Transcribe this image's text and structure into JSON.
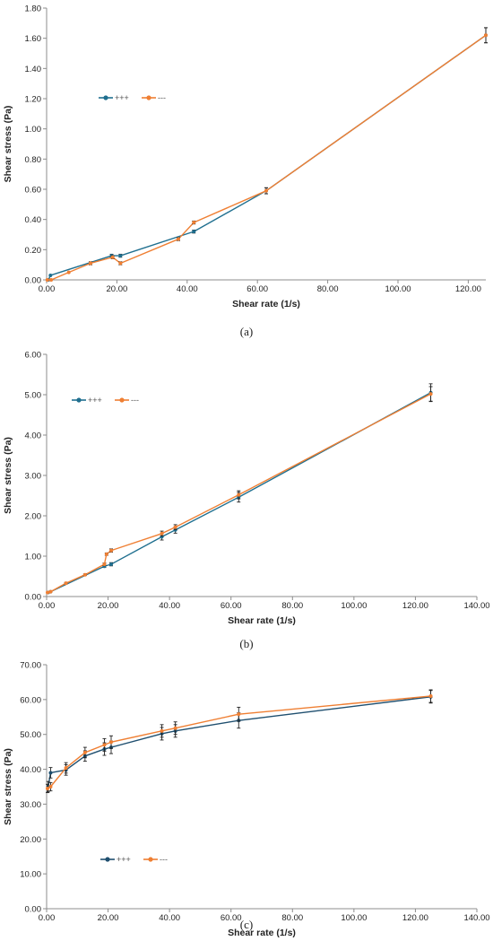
{
  "colors": {
    "series1": "#1f6f8f",
    "series2": "#ef7f33",
    "series1_panel_c": "#1f4f6f",
    "axis": "#8c8c8c",
    "errorbar": "#222222"
  },
  "chart_data": [
    {
      "type": "line",
      "caption": "(a)",
      "xlabel": "Shear rate (1/s)",
      "ylabel": "Shear stress (Pa)",
      "xlim": [
        0,
        125
      ],
      "ylim": [
        0,
        1.8
      ],
      "x_ticks": [
        "0.00",
        "20.00",
        "40.00",
        "60.00",
        "80.00",
        "100.00",
        "120.00"
      ],
      "y_ticks": [
        "0.00",
        "0.20",
        "0.40",
        "0.60",
        "0.80",
        "1.00",
        "1.20",
        "1.40",
        "1.60",
        "1.80"
      ],
      "grid": false,
      "legend_position": "upper-left",
      "series": [
        {
          "name": "+++",
          "color": "#1f6f8f",
          "points": [
            [
              0.5,
              0.0
            ],
            [
              1.1,
              0.03
            ],
            [
              18.5,
              0.16
            ],
            [
              21.0,
              0.16
            ],
            [
              41.9,
              0.32
            ],
            [
              62.5,
              0.59
            ],
            [
              125.0,
              1.62
            ]
          ],
          "errors": [
            0,
            0,
            0.01,
            0.01,
            0.01,
            0.02,
            0.05
          ]
        },
        {
          "name": "---",
          "color": "#ef7f33",
          "points": [
            [
              0.2,
              0.0
            ],
            [
              1.3,
              0.0
            ],
            [
              6.3,
              0.05
            ],
            [
              12.5,
              0.11
            ],
            [
              18.8,
              0.15
            ],
            [
              21.0,
              0.11
            ],
            [
              37.5,
              0.27
            ],
            [
              41.9,
              0.38
            ],
            [
              62.5,
              0.59
            ],
            [
              125.0,
              1.62
            ]
          ],
          "errors": [
            0,
            0,
            0,
            0.01,
            0.01,
            0.01,
            0.01,
            0.01,
            0.02,
            0.05
          ]
        }
      ]
    },
    {
      "type": "line",
      "caption": "(b)",
      "xlabel": "Shear rate (1/s)",
      "ylabel": "Shear stress (Pa)",
      "xlim": [
        0,
        140
      ],
      "ylim": [
        0,
        6
      ],
      "x_ticks": [
        "0.00",
        "20.00",
        "40.00",
        "60.00",
        "80.00",
        "100.00",
        "120.00",
        "140.00"
      ],
      "y_ticks": [
        "0.00",
        "1.00",
        "2.00",
        "3.00",
        "4.00",
        "5.00",
        "6.00"
      ],
      "grid": false,
      "legend_position": "upper-left",
      "series": [
        {
          "name": "+++",
          "color": "#1f6f8f",
          "points": [
            [
              0.5,
              0.1
            ],
            [
              1.3,
              0.12
            ],
            [
              18.8,
              0.75
            ],
            [
              21.0,
              0.8
            ],
            [
              37.5,
              1.48
            ],
            [
              41.9,
              1.65
            ],
            [
              62.5,
              2.46
            ],
            [
              125.0,
              5.05
            ]
          ],
          "errors": [
            0,
            0,
            0.03,
            0.04,
            0.08,
            0.08,
            0.12,
            0.22
          ]
        },
        {
          "name": "---",
          "color": "#ef7f33",
          "points": [
            [
              0.3,
              0.1
            ],
            [
              1.3,
              0.12
            ],
            [
              6.3,
              0.33
            ],
            [
              12.5,
              0.54
            ],
            [
              18.8,
              0.8
            ],
            [
              19.5,
              1.05
            ],
            [
              21.0,
              1.14
            ],
            [
              37.5,
              1.56
            ],
            [
              41.9,
              1.72
            ],
            [
              62.5,
              2.52
            ],
            [
              125.0,
              5.02
            ]
          ],
          "errors": [
            0,
            0,
            0.02,
            0.02,
            0.03,
            0.03,
            0.04,
            0.06,
            0.06,
            0.1,
            0.18
          ]
        }
      ]
    },
    {
      "type": "line",
      "caption": "(c)",
      "xlabel": "Shear rate (1/s)",
      "ylabel": "Shear stress (Pa)",
      "xlim": [
        0,
        140
      ],
      "ylim": [
        0,
        70
      ],
      "x_ticks": [
        "0.00",
        "20.00",
        "40.00",
        "60.00",
        "80.00",
        "100.00",
        "120.00",
        "140.00"
      ],
      "y_ticks": [
        "0.00",
        "10.00",
        "20.00",
        "30.00",
        "40.00",
        "50.00",
        "60.00",
        "70.00"
      ],
      "grid": false,
      "legend_position": "lower-left",
      "series": [
        {
          "name": "+++",
          "color": "#1f4f6f",
          "points": [
            [
              0.5,
              35.0
            ],
            [
              1.3,
              39.0
            ],
            [
              6.3,
              39.8
            ],
            [
              12.5,
              43.8
            ],
            [
              18.8,
              45.8
            ],
            [
              21.0,
              46.3
            ],
            [
              37.5,
              50.2
            ],
            [
              41.9,
              51.0
            ],
            [
              62.5,
              54.0
            ],
            [
              125.0,
              60.8
            ]
          ],
          "errors": [
            1.5,
            1.5,
            1.5,
            1.5,
            1.8,
            1.8,
            1.8,
            1.8,
            2.2,
            1.8
          ]
        },
        {
          "name": "---",
          "color": "#ef7f33",
          "points": [
            [
              0.3,
              34.5
            ],
            [
              1.3,
              35.0
            ],
            [
              6.3,
              40.4
            ],
            [
              12.5,
              44.8
            ],
            [
              18.8,
              47.0
            ],
            [
              21.0,
              47.8
            ],
            [
              37.5,
              51.0
            ],
            [
              41.9,
              51.8
            ],
            [
              62.5,
              55.8
            ],
            [
              125.0,
              61.0
            ]
          ],
          "errors": [
            1.2,
            1.2,
            1.5,
            1.5,
            1.8,
            1.8,
            1.8,
            1.8,
            2.0,
            1.8
          ]
        }
      ]
    }
  ]
}
